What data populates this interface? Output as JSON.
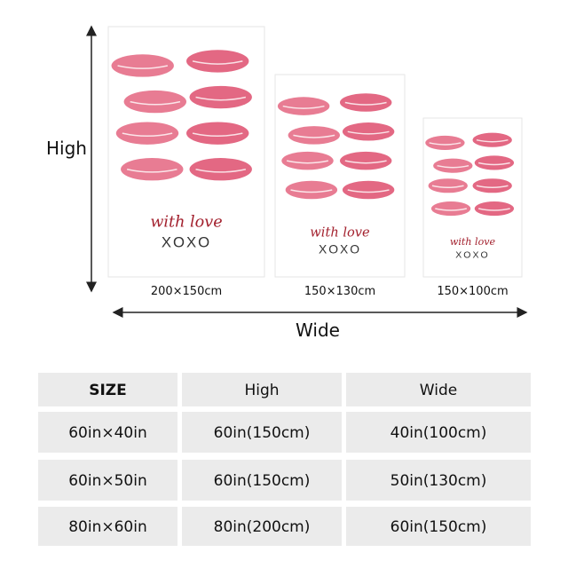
{
  "dimension_labels": {
    "high": "High",
    "wide": "Wide"
  },
  "posters": [
    {
      "script": "with love",
      "xoxo": "XOXO",
      "caption": "200×150cm"
    },
    {
      "script": "with love",
      "xoxo": "XOXO",
      "caption": "150×130cm"
    },
    {
      "script": "with love",
      "xoxo": "XOXO",
      "caption": "150×100cm"
    }
  ],
  "table": {
    "header": [
      "SIZE",
      "High",
      "Wide"
    ],
    "rows": [
      [
        "60in×40in",
        "60in(150cm)",
        "40in(100cm)"
      ],
      [
        "60in×50in",
        "60in(150cm)",
        "50in(130cm)"
      ],
      [
        "80in×60in",
        "80in(200cm)",
        "60in(150cm)"
      ]
    ]
  }
}
